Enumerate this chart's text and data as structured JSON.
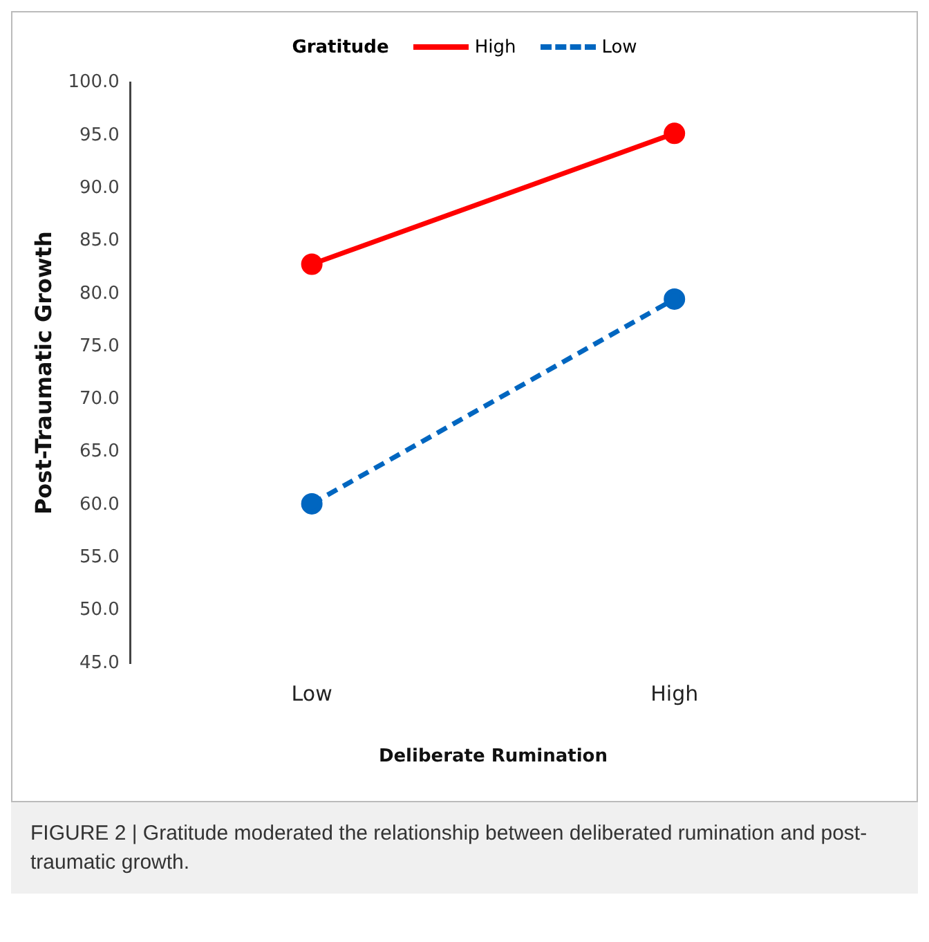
{
  "chart_data": {
    "type": "line",
    "legend_title": "Gratitude",
    "legend": "top",
    "xlabel": "Deliberate Rumination",
    "ylabel": "Post-Traumatic Growth",
    "categories": [
      "Low",
      "High"
    ],
    "series": [
      {
        "name": "High",
        "color": "#ff0000",
        "values": [
          82.8,
          95.2
        ],
        "line_style": "solid"
      },
      {
        "name": "Low",
        "color": "#0066c0",
        "values": [
          60.1,
          79.5
        ],
        "line_style": "dashed"
      }
    ],
    "marker": "circle",
    "ylim": [
      45,
      100
    ],
    "yticks": [
      {
        "value": 45,
        "label": "45.0"
      },
      {
        "value": 50,
        "label": "50.0"
      },
      {
        "value": 55,
        "label": "55.0"
      },
      {
        "value": 60,
        "label": "60.0"
      },
      {
        "value": 65,
        "label": "65.0"
      },
      {
        "value": 70,
        "label": "70.0"
      },
      {
        "value": 75,
        "label": "75.0"
      },
      {
        "value": 80,
        "label": "80.0"
      },
      {
        "value": 85,
        "label": "85.0"
      },
      {
        "value": 90,
        "label": "90.0"
      },
      {
        "value": 95,
        "label": "95.0"
      },
      {
        "value": 100,
        "label": "100.0"
      }
    ],
    "grid": false,
    "annotations": [
      "FIGURE 2 | Gratitude moderated the relationship between deliberated rumination and post-traumatic growth."
    ]
  }
}
